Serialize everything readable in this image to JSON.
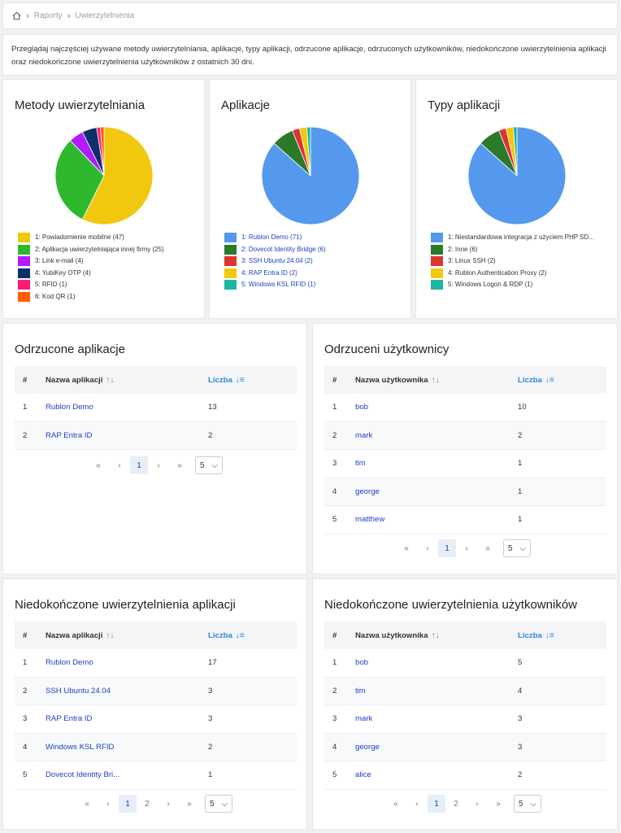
{
  "breadcrumb": {
    "home_icon": "home-icon",
    "items": [
      "Raporty",
      "Uwierzytelnienia"
    ]
  },
  "description": "Przeglądaj najczęściej używane metody uwierzytelniania, aplikacje, typy aplikacji, odrzucone aplikacje, odrzuconych użytkowników, niedokończone uwierzytelnienia aplikacji oraz niedokończone uwierzytelnienia użytkowników z ostatnich 30 dni.",
  "chart_data": [
    {
      "type": "pie",
      "title": "Metody uwierzytelniania",
      "categories": [
        "1: Powiadomienie mobilne (47)",
        "2: Aplikacja uwierzytelniająca innej firmy (25)",
        "3: Link e-mail (4)",
        "4: YubiKey OTP (4)",
        "5: RFID (1)",
        "6: Kod QR (1)"
      ],
      "values": [
        47,
        25,
        4,
        4,
        1,
        1
      ],
      "colors": [
        "#f2c80f",
        "#2eb82e",
        "#b31aff",
        "#0d2f6b",
        "#ff1a75",
        "#ff5c00"
      ],
      "legend_link": false
    },
    {
      "type": "pie",
      "title": "Aplikacje",
      "categories": [
        "1: Rublon Demo (71)",
        "2: Dovecot Identity Bridge (6)",
        "3: SSH Ubuntu 24.04 (2)",
        "4: RAP Entra ID (2)",
        "5: Windows KSL RFID (1)"
      ],
      "values": [
        71,
        6,
        2,
        2,
        1
      ],
      "colors": [
        "#5599ee",
        "#2a7a2a",
        "#dd3333",
        "#f2c80f",
        "#1fb5a0"
      ],
      "legend_link": true
    },
    {
      "type": "pie",
      "title": "Typy aplikacji",
      "categories": [
        "1: Niestandardowa integracja z użyciem PHP SD...",
        "2: Inne (6)",
        "3: Linux SSH (2)",
        "4: Rublon Authentication Proxy (2)",
        "5: Windows Logon & RDP (1)"
      ],
      "values": [
        71,
        6,
        2,
        2,
        1
      ],
      "colors": [
        "#5599ee",
        "#2a7a2a",
        "#dd3333",
        "#f2c80f",
        "#1fb5a0"
      ],
      "legend_link": false
    }
  ],
  "tables": {
    "rejected_apps": {
      "title": "Odrzucone aplikacje",
      "headers": [
        "#",
        "Nazwa aplikacji",
        "Liczba"
      ],
      "rows": [
        [
          "1",
          "Rublon Demo",
          "13"
        ],
        [
          "2",
          "RAP Entra ID",
          "2"
        ]
      ],
      "pages": [
        "1"
      ],
      "page_size": "5"
    },
    "rejected_users": {
      "title": "Odrzuceni użytkownicy",
      "headers": [
        "#",
        "Nazwa użytkownika",
        "Liczba"
      ],
      "rows": [
        [
          "1",
          "bob",
          "10"
        ],
        [
          "2",
          "mark",
          "2"
        ],
        [
          "3",
          "tim",
          "1"
        ],
        [
          "4",
          "george",
          "1"
        ],
        [
          "5",
          "matthew",
          "1"
        ]
      ],
      "pages": [
        "1"
      ],
      "page_size": "5"
    },
    "incomplete_apps": {
      "title": "Niedokończone uwierzytelnienia aplikacji",
      "headers": [
        "#",
        "Nazwa aplikacji",
        "Liczba"
      ],
      "rows": [
        [
          "1",
          "Rublon Demo",
          "17"
        ],
        [
          "2",
          "SSH Ubuntu 24.04",
          "3"
        ],
        [
          "3",
          "RAP Entra ID",
          "3"
        ],
        [
          "4",
          "Windows KSL RFID",
          "2"
        ],
        [
          "5",
          "Dovecot Identity Bri...",
          "1"
        ]
      ],
      "pages": [
        "1",
        "2"
      ],
      "page_size": "5"
    },
    "incomplete_users": {
      "title": "Niedokończone uwierzytelnienia użytkowników",
      "headers": [
        "#",
        "Nazwa użytkownika",
        "Liczba"
      ],
      "rows": [
        [
          "1",
          "bob",
          "5"
        ],
        [
          "2",
          "tim",
          "4"
        ],
        [
          "3",
          "mark",
          "3"
        ],
        [
          "4",
          "george",
          "3"
        ],
        [
          "5",
          "alice",
          "2"
        ]
      ],
      "pages": [
        "1",
        "2"
      ],
      "page_size": "5"
    }
  },
  "pager_glyphs": {
    "first": "«",
    "prev": "‹",
    "next": "›",
    "last": "»",
    "chevron": "⌵"
  }
}
